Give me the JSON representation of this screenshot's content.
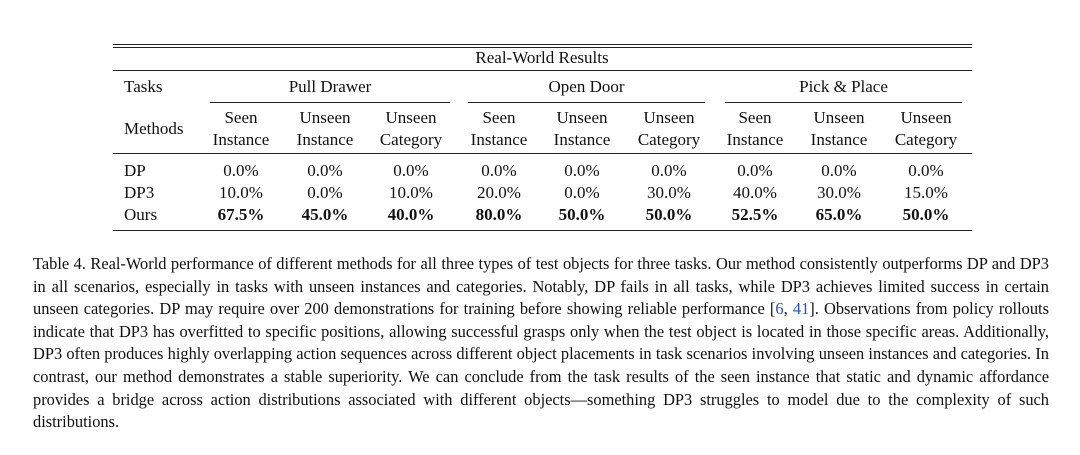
{
  "table": {
    "title": "Real-World Results",
    "corner_top": "Tasks",
    "corner_bottom": "Methods",
    "groups": [
      {
        "name": "Pull Drawer",
        "columns": [
          [
            "Seen",
            "Instance"
          ],
          [
            "Unseen",
            "Instance"
          ],
          [
            "Unseen",
            "Category"
          ]
        ]
      },
      {
        "name": "Open Door",
        "columns": [
          [
            "Seen",
            "Instance"
          ],
          [
            "Unseen",
            "Instance"
          ],
          [
            "Unseen",
            "Category"
          ]
        ]
      },
      {
        "name": "Pick & Place",
        "columns": [
          [
            "Seen",
            "Instance"
          ],
          [
            "Unseen",
            "Instance"
          ],
          [
            "Unseen",
            "Category"
          ]
        ]
      }
    ],
    "rows": [
      {
        "method": "DP",
        "bold": false,
        "values": [
          "0.0%",
          "0.0%",
          "0.0%",
          "0.0%",
          "0.0%",
          "0.0%",
          "0.0%",
          "0.0%",
          "0.0%"
        ]
      },
      {
        "method": "DP3",
        "bold": false,
        "values": [
          "10.0%",
          "0.0%",
          "10.0%",
          "20.0%",
          "0.0%",
          "30.0%",
          "40.0%",
          "30.0%",
          "15.0%"
        ]
      },
      {
        "method": "Ours",
        "bold": true,
        "values": [
          "67.5%",
          "45.0%",
          "40.0%",
          "80.0%",
          "50.0%",
          "50.0%",
          "52.5%",
          "65.0%",
          "50.0%"
        ]
      }
    ]
  },
  "caption": {
    "label": "Table 4.",
    "parts": [
      {
        "text": " Real-World performance of different methods for all three types of test objects for three tasks. Our method consistently outperforms DP and DP3 in all scenarios, especially in tasks with unseen instances and categories. Notably, DP fails in all tasks, while DP3 achieves limited success in certain unseen categories. DP may require over 200 demonstrations for training before showing reliable performance [",
        "ref": false
      },
      {
        "text": "6",
        "ref": true
      },
      {
        "text": ", ",
        "ref": false
      },
      {
        "text": "41",
        "ref": true
      },
      {
        "text": "]. Observations from policy rollouts indicate that DP3 has overfitted to specific positions, allowing successful grasps only when the test object is located in those specific areas. Additionally, DP3 often produces highly overlapping action sequences across different object placements in task scenarios involving unseen instances and categories. In contrast, our method demonstrates a stable superiority. We can conclude from the task results of the seen instance that static and dynamic affordance provides a bridge across action distributions associated with different objects—something DP3 struggles to model due to the complexity of such distributions.",
        "ref": false
      }
    ]
  }
}
